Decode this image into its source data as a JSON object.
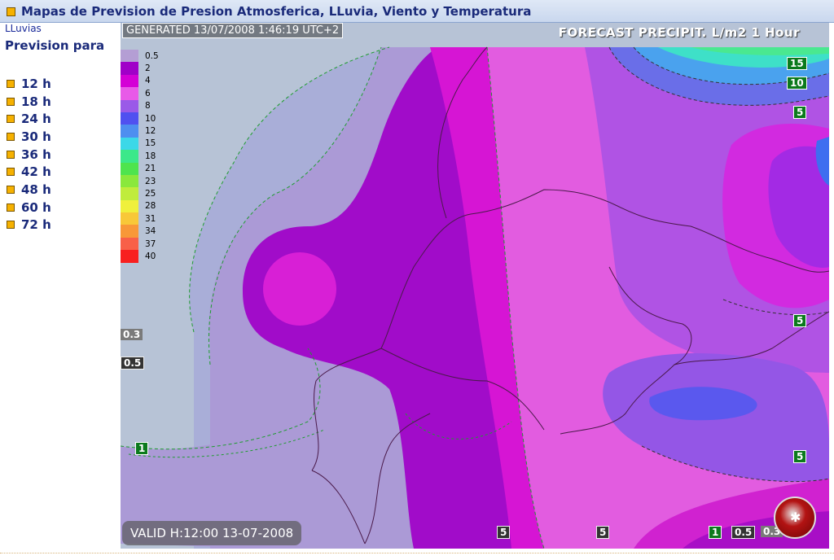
{
  "header": {
    "title": "Mapas de Prevision de Presion Atmosferica, LLuvia, Viento y Temperatura"
  },
  "sidebar": {
    "sub_label": "LLuvias",
    "prevision_label": "Prevision para",
    "hours": [
      "12 h",
      "18 h",
      "24 h",
      "30 h",
      "36 h",
      "42 h",
      "48 h",
      "60 h",
      "72 h"
    ]
  },
  "map": {
    "generated": "GENERATED 13/07/2008 1:46:19 UTC+2",
    "forecast_title": "FORECAST  PRECIPIT. L/m2  1 Hour",
    "valid": "VALID H:12:00   13-07-2008",
    "legend": [
      {
        "value": "0.5",
        "color": "#b49ed4"
      },
      {
        "value": "2",
        "color": "#a000c8"
      },
      {
        "value": "4",
        "color": "#d400d6"
      },
      {
        "value": "6",
        "color": "#e85ae8"
      },
      {
        "value": "8",
        "color": "#9a5ae8"
      },
      {
        "value": "10",
        "color": "#5050f0"
      },
      {
        "value": "12",
        "color": "#4e8ef0"
      },
      {
        "value": "15",
        "color": "#3cd8e8"
      },
      {
        "value": "18",
        "color": "#3ce88a"
      },
      {
        "value": "21",
        "color": "#4ee44e"
      },
      {
        "value": "23",
        "color": "#8ae83c"
      },
      {
        "value": "25",
        "color": "#c0ec3c"
      },
      {
        "value": "28",
        "color": "#f0f03c"
      },
      {
        "value": "31",
        "color": "#f8c838"
      },
      {
        "value": "34",
        "color": "#f89838"
      },
      {
        "value": "37",
        "color": "#f86048"
      },
      {
        "value": "40",
        "color": "#f82020"
      }
    ],
    "contour_labels": [
      {
        "text": "15"
      },
      {
        "text": "10"
      },
      {
        "text": "5"
      },
      {
        "text": "5"
      },
      {
        "text": "5"
      },
      {
        "text": "0.3"
      },
      {
        "text": "0.5"
      },
      {
        "text": "1"
      },
      {
        "text": "5"
      },
      {
        "text": "5"
      },
      {
        "text": "1"
      },
      {
        "text": "0.5"
      },
      {
        "text": "0.3"
      }
    ]
  }
}
